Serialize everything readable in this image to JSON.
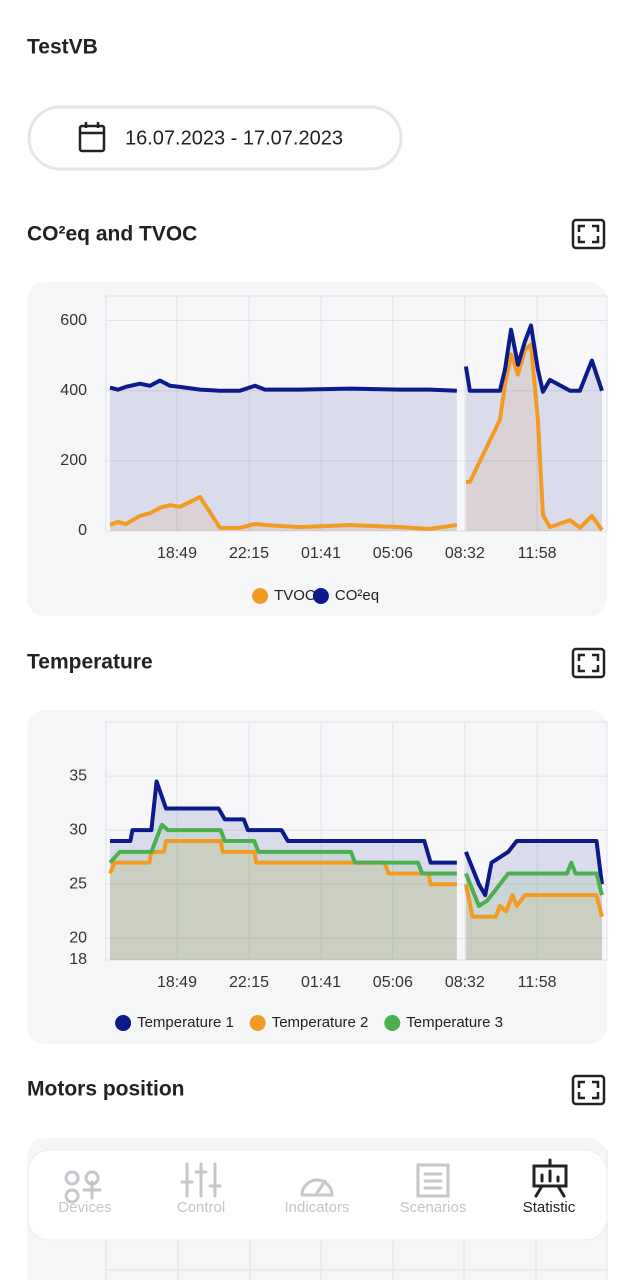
{
  "header": {
    "title": "TestVB",
    "date_range": "16.07.2023 - 17.07.2023"
  },
  "chart_data": [
    {
      "type": "line",
      "title": "CO²eq and TVOC",
      "area": true,
      "grid": true,
      "x": [
        15.63,
        16.01,
        16.39,
        17.06,
        17.54,
        18.01,
        18.49,
        18.96,
        19.92,
        20.87,
        21.82,
        22.54,
        23.01,
        24.68,
        27.06,
        29.44,
        30.87,
        32.15,
        null,
        32.58,
        32.77,
        34.2,
        34.44,
        34.73,
        35.06,
        35.39,
        35.68,
        36.01,
        36.25,
        36.58,
        37.54,
        38.01,
        38.58,
        39.06
      ],
      "series": [
        {
          "name": "TVOC",
          "color": "#f29b24",
          "values": [
            17,
            26,
            20,
            43,
            51,
            66,
            74,
            69,
            97,
            9,
            9,
            20,
            17,
            11,
            17,
            11,
            6,
            17,
            null,
            140,
            140,
            317,
            417,
            503,
            446,
            517,
            531,
            317,
            46,
            11,
            31,
            9,
            43,
            3
          ]
        },
        {
          "name": "CO²eq",
          "color": "#0d1a8a",
          "values": [
            409,
            403,
            411,
            420,
            414,
            429,
            414,
            411,
            403,
            400,
            400,
            414,
            403,
            403,
            406,
            403,
            403,
            400,
            null,
            469,
            400,
            400,
            460,
            574,
            474,
            540,
            586,
            460,
            397,
            431,
            400,
            400,
            486,
            400
          ]
        }
      ],
      "xlim": [
        15.44,
        39.3
      ],
      "ylim": [
        0,
        670
      ],
      "yticks": [
        0,
        200,
        400,
        600
      ],
      "xticks": [
        {
          "value": 18.82,
          "label": "18:49"
        },
        {
          "value": 22.25,
          "label": "22:15"
        },
        {
          "value": 25.68,
          "label": "01:41"
        },
        {
          "value": 29.1,
          "label": "05:06"
        },
        {
          "value": 32.53,
          "label": "08:32"
        },
        {
          "value": 35.97,
          "label": "11:58"
        }
      ]
    },
    {
      "type": "line",
      "title": "Temperature",
      "area": true,
      "grid": true,
      "series": [
        {
          "name": "Temperature 1",
          "color": "#0d1a8a",
          "x": [
            15.63,
            16.6,
            16.7,
            17.6,
            17.85,
            18.3,
            20.8,
            21.1,
            22.0,
            22.2,
            23.8,
            24.1,
            30.6,
            30.9,
            32.15,
            null,
            32.58,
            33.2,
            33.5,
            33.8,
            34.6,
            35.0,
            38.8,
            39.06
          ],
          "values": [
            29,
            29,
            30,
            30,
            34.5,
            32,
            32,
            31,
            31,
            30,
            30,
            29,
            29,
            27,
            27,
            null,
            28,
            25,
            24,
            27,
            28,
            29,
            29,
            25
          ]
        },
        {
          "name": "Temperature 2",
          "color": "#f29b24",
          "x": [
            15.63,
            15.85,
            17.5,
            17.6,
            18.2,
            18.3,
            20.9,
            21.0,
            22.5,
            22.6,
            28.7,
            28.9,
            30.8,
            30.9,
            32.15,
            null,
            32.58,
            32.9,
            34.0,
            34.2,
            34.5,
            34.8,
            35.0,
            35.4,
            38.8,
            39.06
          ],
          "values": [
            26,
            27,
            27,
            28,
            28,
            29,
            29,
            28,
            28,
            27,
            27,
            26,
            26,
            25,
            25,
            null,
            25,
            22,
            22,
            23,
            22.5,
            24,
            23,
            24,
            24,
            22
          ]
        },
        {
          "name": "Temperature 3",
          "color": "#4caf50",
          "x": [
            15.63,
            16.1,
            17.6,
            18.1,
            18.4,
            20.9,
            21.1,
            22.5,
            22.7,
            27.1,
            27.3,
            30.3,
            30.5,
            32.15,
            null,
            32.58,
            33.2,
            33.6,
            34.2,
            34.6,
            37.4,
            37.6,
            37.8,
            38.8,
            39.06
          ],
          "values": [
            27,
            28,
            28,
            30.5,
            30,
            30,
            29,
            29,
            28,
            28,
            27,
            27,
            26,
            26,
            null,
            26,
            23,
            23.5,
            25,
            26,
            26,
            27,
            26,
            26,
            24
          ]
        }
      ],
      "xlim": [
        15.44,
        39.3
      ],
      "ylim": [
        18,
        40
      ],
      "yticks": [
        18,
        20,
        25,
        30,
        35
      ],
      "xticks": [
        {
          "value": 18.82,
          "label": "18:49"
        },
        {
          "value": 22.25,
          "label": "22:15"
        },
        {
          "value": 25.68,
          "label": "01:41"
        },
        {
          "value": 29.1,
          "label": "05:06"
        },
        {
          "value": 32.53,
          "label": "08:32"
        },
        {
          "value": 35.97,
          "label": "11:58"
        }
      ]
    }
  ],
  "motors": {
    "title": "Motors position"
  },
  "nav": {
    "items": [
      "Devices",
      "Control",
      "Indicators",
      "Scenarios",
      "Statistic"
    ],
    "active": 4
  }
}
